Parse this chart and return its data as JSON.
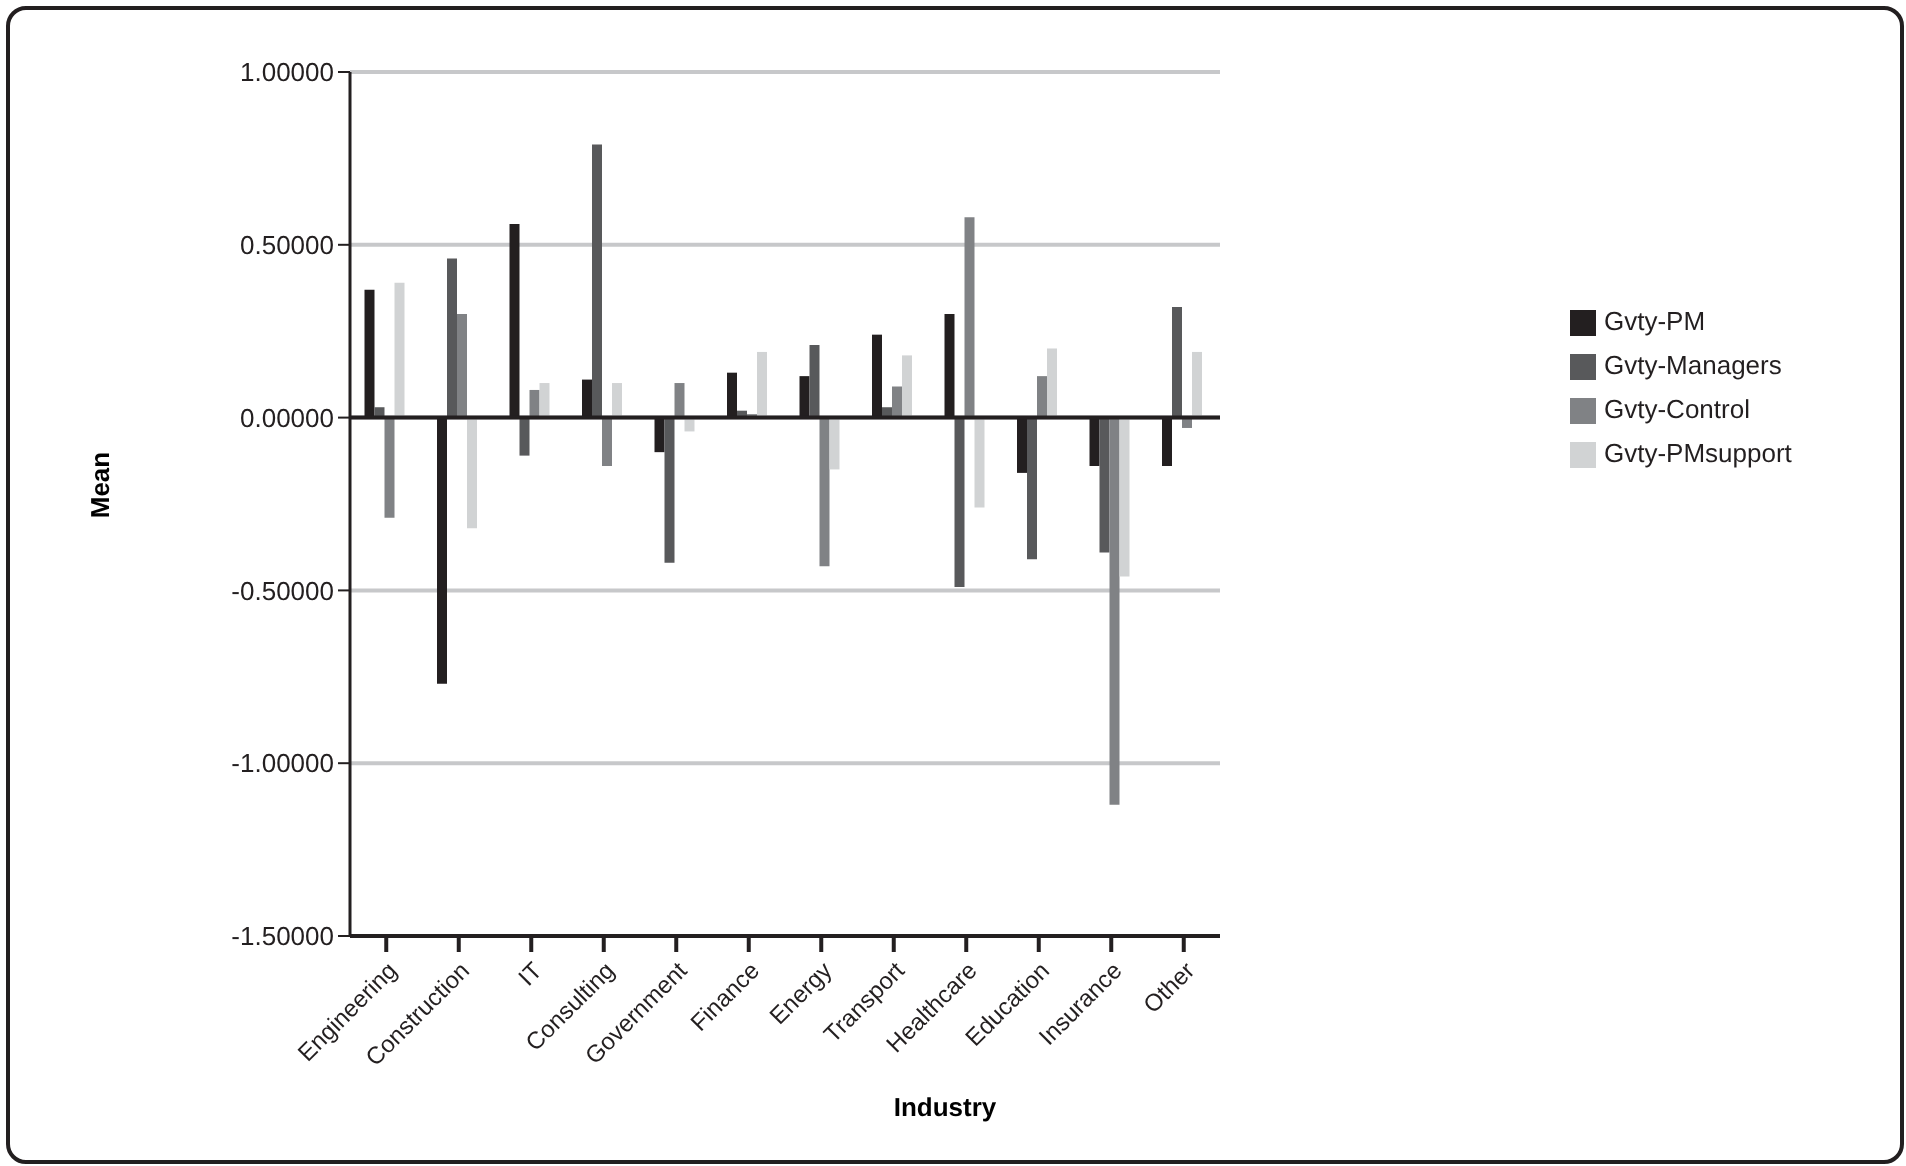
{
  "chart_data": {
    "type": "bar",
    "xlabel": "Industry",
    "ylabel": "Mean",
    "categories": [
      "Engineering",
      "Construction",
      "IT",
      "Consulting",
      "Government",
      "Finance",
      "Energy",
      "Transport",
      "Healthcare",
      "Education",
      "Insurance",
      "Other"
    ],
    "series": [
      {
        "name": "Gvty-PM",
        "color": "#231f20",
        "values": [
          0.37,
          -0.77,
          0.56,
          0.11,
          -0.1,
          0.13,
          0.12,
          0.24,
          0.3,
          -0.16,
          -0.14,
          -0.14
        ]
      },
      {
        "name": "Gvty-Managers",
        "color": "#58595b",
        "values": [
          0.03,
          0.46,
          -0.11,
          0.79,
          -0.42,
          0.02,
          0.21,
          0.03,
          -0.49,
          -0.41,
          -0.39,
          0.32
        ]
      },
      {
        "name": "Gvty-Control",
        "color": "#808285",
        "values": [
          -0.29,
          0.3,
          0.08,
          -0.14,
          0.1,
          0.01,
          -0.43,
          0.09,
          0.58,
          0.12,
          -1.12,
          -0.03
        ]
      },
      {
        "name": "Gvty-PMsupport",
        "color": "#d1d3d4",
        "values": [
          0.39,
          -0.32,
          0.1,
          0.1,
          -0.04,
          0.19,
          -0.15,
          0.18,
          -0.26,
          0.2,
          -0.46,
          0.19
        ]
      }
    ],
    "ylim": [
      -1.5,
      1
    ],
    "yticks": [
      {
        "value": -1.5,
        "label": "-1.50000"
      },
      {
        "value": -1,
        "label": "-1.00000"
      },
      {
        "value": -0.5,
        "label": "-0.50000"
      },
      {
        "value": 0,
        "label": "0.00000"
      },
      {
        "value": 0.5,
        "label": "0.50000"
      },
      {
        "value": 1,
        "label": "1.00000"
      }
    ],
    "grid": "y",
    "legend": "right"
  }
}
